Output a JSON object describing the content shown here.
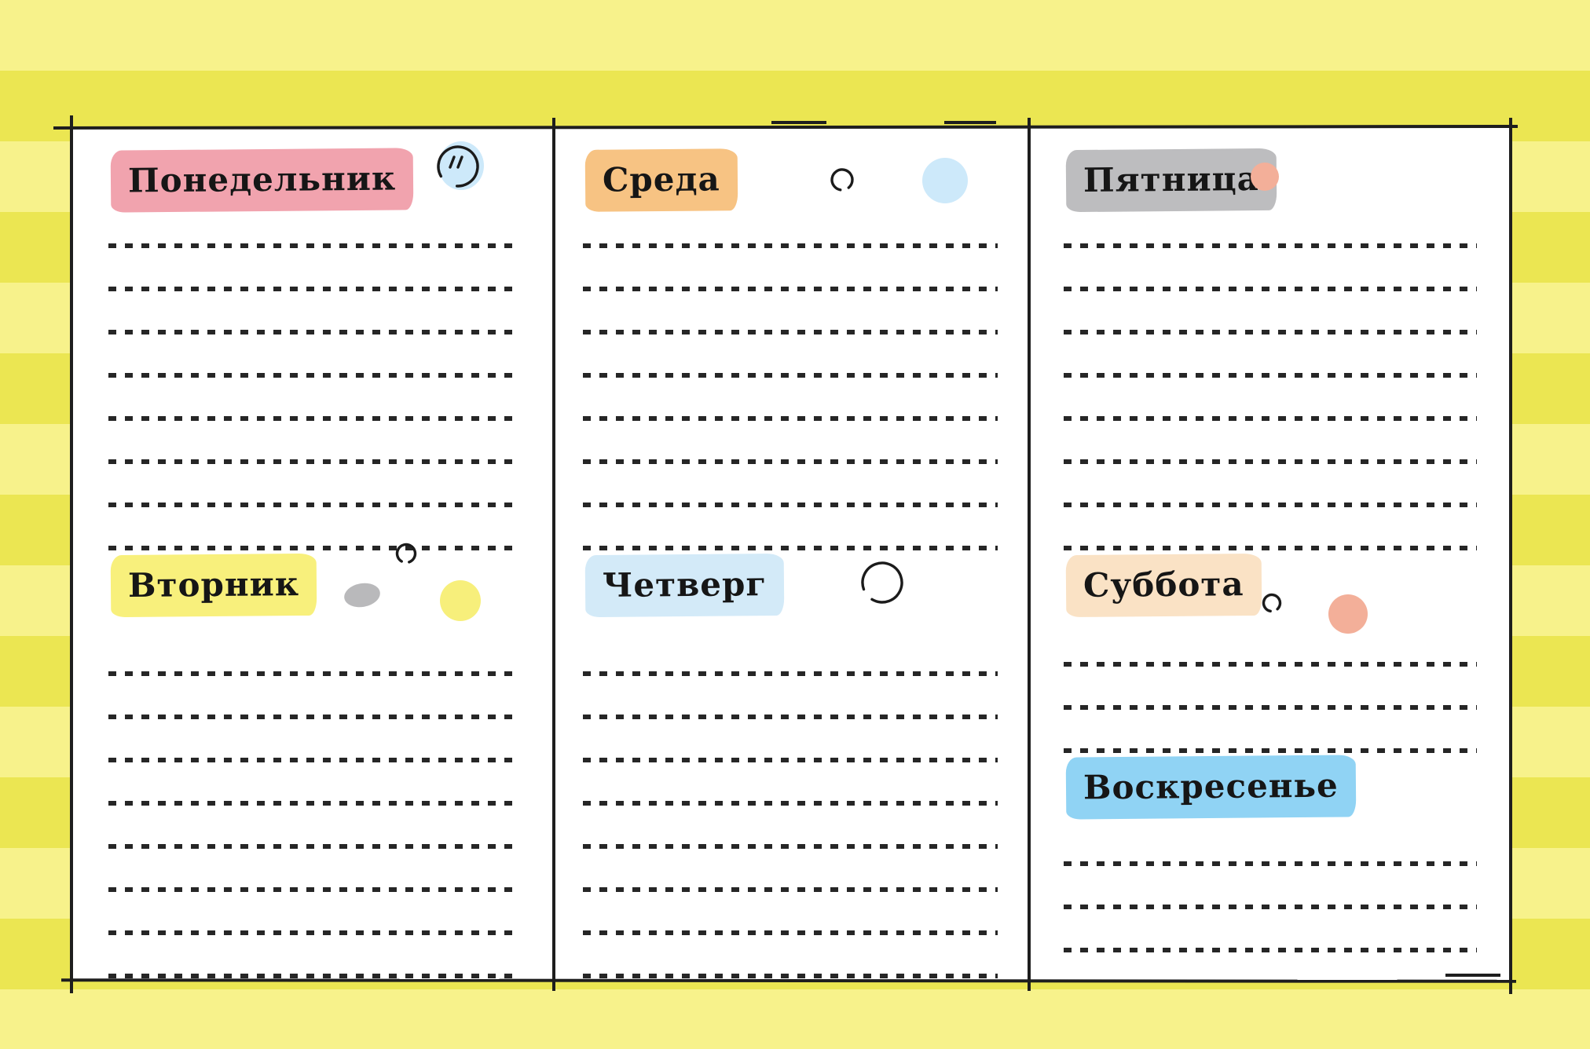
{
  "days": [
    {
      "label": "Понедельник",
      "highlight": "#f1a3ae",
      "lines": 8,
      "column": 1,
      "row": 1,
      "doodles": [
        "blue-blob-scribbled-circle-icon"
      ]
    },
    {
      "label": "Вторник",
      "highlight": "#f8f07c",
      "lines": 8,
      "column": 1,
      "row": 2,
      "doodles": [
        "gray-dot-icon",
        "scribble-circle-icon",
        "yellow-dot-icon"
      ]
    },
    {
      "label": "Среда",
      "highlight": "#f7c383",
      "lines": 8,
      "column": 2,
      "row": 1,
      "doodles": [
        "scribble-circle-icon",
        "blue-dot-icon"
      ]
    },
    {
      "label": "Четверг",
      "highlight": "#d3eaf8",
      "lines": 8,
      "column": 2,
      "row": 2,
      "doodles": [
        "scribble-circle-icon"
      ]
    },
    {
      "label": "Пятница",
      "highlight": "#bdbdbf",
      "lines": 8,
      "column": 3,
      "row": 1,
      "doodles": [
        "salmon-dot-icon"
      ]
    },
    {
      "label": "Суббота",
      "highlight": "#fae2c5",
      "lines": 3,
      "column": 3,
      "row": 2,
      "doodles": [
        "scribble-circle-icon",
        "salmon-dot-icon"
      ]
    },
    {
      "label": "Воскресенье",
      "highlight": "#90d3f4",
      "lines": 3,
      "column": 3,
      "row": 3,
      "doodles": []
    }
  ],
  "dot_colors": {
    "blue": "#cde9fa",
    "yellow": "#f7ef7b",
    "gray": "#b9b9bb",
    "salmon": "#f3af99"
  },
  "background": {
    "stripe_light": "#f7f28b",
    "stripe_dark": "#ebe652",
    "ink": "#1e1e1e",
    "paper": "#ffffff"
  }
}
